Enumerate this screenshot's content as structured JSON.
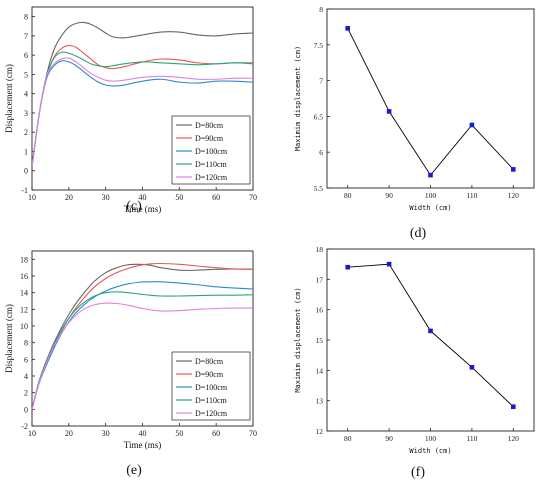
{
  "colors": {
    "axis": "#222222",
    "marker": "#1a1acc",
    "marker_line": "#000000",
    "series": [
      "#666666",
      "#e8575a",
      "#2a8bd0",
      "#2aa574",
      "#e080e0"
    ]
  },
  "chart_data": [
    {
      "panel": "(c)",
      "type": "line",
      "xlabel": "Time (ms)",
      "ylabel": "Displacement (cm)",
      "xlim": [
        10,
        70
      ],
      "ylim": [
        -1,
        8.5
      ],
      "xticks": [
        10,
        20,
        30,
        40,
        50,
        60,
        70
      ],
      "yticks": [
        -1,
        0,
        1,
        2,
        3,
        4,
        5,
        6,
        7,
        8
      ],
      "legend_position": "lower-right",
      "series": [
        {
          "name": "D=80cm",
          "x": [
            10,
            12,
            14,
            16,
            18,
            20,
            22,
            24,
            26,
            28,
            30,
            32,
            35,
            40,
            45,
            50,
            55,
            60,
            65,
            70
          ],
          "y": [
            0.2,
            3.0,
            5.0,
            6.3,
            7.0,
            7.45,
            7.65,
            7.7,
            7.6,
            7.4,
            7.15,
            6.95,
            6.9,
            7.05,
            7.2,
            7.2,
            7.05,
            7.0,
            7.1,
            7.15
          ]
        },
        {
          "name": "D=90cm",
          "x": [
            10,
            12,
            14,
            16,
            18,
            20,
            22,
            24,
            26,
            28,
            30,
            32,
            35,
            40,
            45,
            50,
            55,
            60,
            65,
            70
          ],
          "y": [
            0.2,
            3.0,
            4.9,
            5.9,
            6.35,
            6.5,
            6.4,
            6.1,
            5.8,
            5.5,
            5.35,
            5.3,
            5.4,
            5.65,
            5.8,
            5.75,
            5.6,
            5.55,
            5.6,
            5.6
          ]
        },
        {
          "name": "D=100cm",
          "x": [
            10,
            12,
            14,
            16,
            18,
            20,
            22,
            24,
            26,
            28,
            30,
            32,
            35,
            40,
            45,
            50,
            55,
            60,
            65,
            70
          ],
          "y": [
            0.2,
            3.0,
            4.8,
            5.45,
            5.7,
            5.65,
            5.45,
            5.15,
            4.85,
            4.6,
            4.45,
            4.4,
            4.45,
            4.65,
            4.75,
            4.6,
            4.55,
            4.65,
            4.65,
            4.6
          ]
        },
        {
          "name": "D=110cm",
          "x": [
            10,
            12,
            14,
            16,
            18,
            20,
            22,
            24,
            26,
            28,
            30,
            32,
            35,
            40,
            45,
            50,
            55,
            60,
            65,
            70
          ],
          "y": [
            0.2,
            3.0,
            4.95,
            5.85,
            6.15,
            6.1,
            5.95,
            5.75,
            5.55,
            5.45,
            5.4,
            5.45,
            5.55,
            5.65,
            5.6,
            5.55,
            5.5,
            5.55,
            5.6,
            5.55
          ]
        },
        {
          "name": "D=120cm",
          "x": [
            10,
            12,
            14,
            16,
            18,
            20,
            22,
            24,
            26,
            28,
            30,
            32,
            35,
            40,
            45,
            50,
            55,
            60,
            65,
            70
          ],
          "y": [
            0.2,
            3.0,
            4.9,
            5.55,
            5.8,
            5.85,
            5.65,
            5.35,
            5.05,
            4.85,
            4.7,
            4.65,
            4.7,
            4.85,
            4.9,
            4.85,
            4.75,
            4.75,
            4.8,
            4.8
          ]
        }
      ]
    },
    {
      "panel": "(d)",
      "type": "line",
      "markers": true,
      "xlabel": "Width (cm)",
      "ylabel": "Maximim displacement (cm)",
      "xlim": [
        75,
        125
      ],
      "ylim": [
        5.5,
        8.0
      ],
      "xticks": [
        80,
        90,
        100,
        110,
        120
      ],
      "yticks": [
        5.5,
        6.0,
        6.5,
        7.0,
        7.5,
        8.0
      ],
      "x": [
        80,
        90,
        100,
        110,
        120
      ],
      "y": [
        7.73,
        6.57,
        5.68,
        6.38,
        5.76
      ]
    },
    {
      "panel": "(e)",
      "type": "line",
      "xlabel": "Time (ms)",
      "ylabel": "Displacement (cm)",
      "xlim": [
        10,
        70
      ],
      "ylim": [
        -2,
        19
      ],
      "xticks": [
        10,
        20,
        30,
        40,
        50,
        60,
        70
      ],
      "yticks": [
        -2,
        0,
        2,
        4,
        6,
        8,
        10,
        12,
        14,
        16,
        18
      ],
      "legend_position": "lower-right",
      "series": [
        {
          "name": "D=80cm",
          "x": [
            10,
            12,
            15,
            18,
            21,
            24,
            27,
            30,
            33,
            36,
            39,
            42,
            45,
            50,
            55,
            60,
            65,
            70
          ],
          "y": [
            0.0,
            3.5,
            7.0,
            9.8,
            12.1,
            13.9,
            15.4,
            16.4,
            17.0,
            17.35,
            17.4,
            17.3,
            17.0,
            16.7,
            16.7,
            16.8,
            16.85,
            16.8
          ]
        },
        {
          "name": "D=90cm",
          "x": [
            10,
            12,
            15,
            18,
            21,
            24,
            27,
            30,
            33,
            36,
            39,
            42,
            45,
            50,
            55,
            60,
            65,
            70
          ],
          "y": [
            0.0,
            3.3,
            6.6,
            9.4,
            11.6,
            13.3,
            14.7,
            15.7,
            16.4,
            16.9,
            17.25,
            17.45,
            17.5,
            17.4,
            17.2,
            17.0,
            16.85,
            16.8
          ]
        },
        {
          "name": "D=100cm",
          "x": [
            10,
            12,
            15,
            18,
            21,
            24,
            27,
            30,
            33,
            36,
            39,
            42,
            45,
            50,
            55,
            60,
            65,
            70
          ],
          "y": [
            0.0,
            3.2,
            6.4,
            9.1,
            11.1,
            12.5,
            13.5,
            14.2,
            14.7,
            15.05,
            15.25,
            15.3,
            15.3,
            15.15,
            14.95,
            14.7,
            14.55,
            14.45
          ]
        },
        {
          "name": "D=110cm",
          "x": [
            10,
            12,
            15,
            18,
            21,
            24,
            27,
            30,
            33,
            36,
            39,
            42,
            45,
            50,
            55,
            60,
            65,
            70
          ],
          "y": [
            0.0,
            3.4,
            6.8,
            9.5,
            11.5,
            12.8,
            13.6,
            14.0,
            14.1,
            14.0,
            13.85,
            13.7,
            13.6,
            13.6,
            13.65,
            13.7,
            13.7,
            13.75
          ]
        },
        {
          "name": "D=120cm",
          "x": [
            10,
            12,
            15,
            18,
            21,
            24,
            27,
            30,
            33,
            36,
            39,
            42,
            45,
            50,
            55,
            60,
            65,
            70
          ],
          "y": [
            0.0,
            3.3,
            6.7,
            9.2,
            10.9,
            12.0,
            12.55,
            12.75,
            12.7,
            12.5,
            12.2,
            11.95,
            11.8,
            11.85,
            12.0,
            12.1,
            12.15,
            12.15
          ]
        }
      ]
    },
    {
      "panel": "(f)",
      "type": "line",
      "markers": true,
      "xlabel": "Width (cm)",
      "ylabel": "Maximim displacement (cm)",
      "xlim": [
        75,
        125
      ],
      "ylim": [
        12,
        18
      ],
      "xticks": [
        80,
        90,
        100,
        110,
        120
      ],
      "yticks": [
        12,
        13,
        14,
        15,
        16,
        17,
        18
      ],
      "x": [
        80,
        90,
        100,
        110,
        120
      ],
      "y": [
        17.4,
        17.5,
        15.3,
        14.1,
        12.8
      ]
    }
  ]
}
